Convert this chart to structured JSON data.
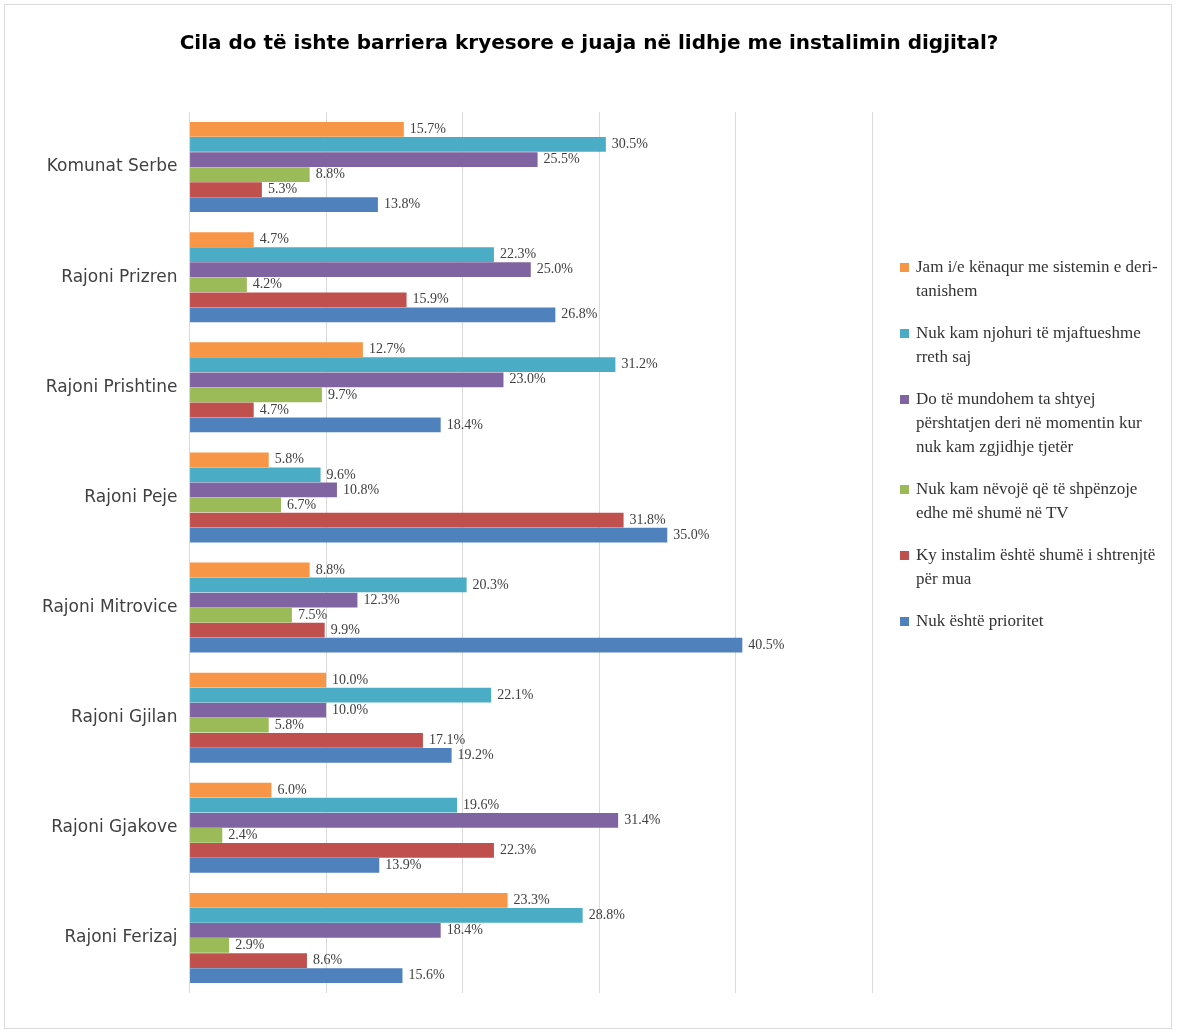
{
  "chart_data": {
    "type": "bar",
    "orientation": "horizontal",
    "title": "Cila do të ishte barriera kryesore e juaja në lidhje me instalimin digjital?",
    "categories": [
      "Komunat Serbe",
      "Rajoni Prizren",
      "Rajoni Prishtine",
      "Rajoni Peje",
      "Rajoni Mitrovice",
      "Rajoni Gjilan",
      "Rajoni Gjakove",
      "Rajoni Ferizaj"
    ],
    "series": [
      {
        "name": "Jam i/e kënaqur me sistemin e deri-tanishem",
        "color": "#f79646",
        "values": [
          15.7,
          4.7,
          12.7,
          5.8,
          8.8,
          10.0,
          6.0,
          23.3
        ],
        "value_labels": [
          "15.7%",
          "4.7%",
          "12.7%",
          "5.8%",
          "8.8%",
          "10.0%",
          "6.0%",
          "23.3%"
        ]
      },
      {
        "name": "Nuk kam njohuri të mjaftueshme rreth saj",
        "color": "#4bacc6",
        "values": [
          30.5,
          22.3,
          31.2,
          9.6,
          20.3,
          22.1,
          19.6,
          28.8
        ],
        "value_labels": [
          "30.5%",
          "22.3%",
          "31.2%",
          "9.6%",
          "20.3%",
          "22.1%",
          "19.6%",
          "28.8%"
        ]
      },
      {
        "name": "Do të mundohem ta shtyej përshtatjen deri në momentin kur nuk kam zgjidhje tjetër",
        "color": "#8064a2",
        "values": [
          25.5,
          25.0,
          23.0,
          10.8,
          12.3,
          10.0,
          31.4,
          18.4
        ],
        "value_labels": [
          "25.5%",
          "25.0%",
          "23.0%",
          "10.8%",
          "12.3%",
          "10.0%",
          "31.4%",
          "18.4%"
        ]
      },
      {
        "name": "Nuk kam nëvojë që të shpënzoje edhe më shumë në TV",
        "color": "#9bbb59",
        "values": [
          8.8,
          4.2,
          9.7,
          6.7,
          7.5,
          5.8,
          2.4,
          2.9
        ],
        "value_labels": [
          "8.8%",
          "4.2%",
          "9.7%",
          "6.7%",
          "7.5%",
          "5.8%",
          "2.4%",
          "2.9%"
        ]
      },
      {
        "name": "Ky instalim është shumë i shtrenjtë për mua",
        "color": "#c0504d",
        "values": [
          5.3,
          15.9,
          4.7,
          31.8,
          9.9,
          17.1,
          22.3,
          8.6
        ],
        "value_labels": [
          "5.3%",
          "15.9%",
          "4.7%",
          "31.8%",
          "9.9%",
          "17.1%",
          "22.3%",
          "8.6%"
        ]
      },
      {
        "name": "Nuk është prioritet",
        "color": "#4f81bd",
        "values": [
          13.8,
          26.8,
          18.4,
          35.0,
          40.5,
          19.2,
          13.9,
          15.6
        ],
        "value_labels": [
          "13.8%",
          "26.8%",
          "18.4%",
          "35.0%",
          "40.5%",
          "19.2%",
          "13.9%",
          "15.6%"
        ]
      }
    ],
    "xlim": [
      0,
      50
    ],
    "xticks": [
      {
        "value": 0,
        "label": null
      },
      {
        "value": 10,
        "label": null
      },
      {
        "value": 20,
        "label": null
      },
      {
        "value": 30,
        "label": null
      },
      {
        "value": 40,
        "label": null
      },
      {
        "value": 50,
        "label": null
      }
    ],
    "tick_labels": "y",
    "grid": "x",
    "legend": "right"
  }
}
